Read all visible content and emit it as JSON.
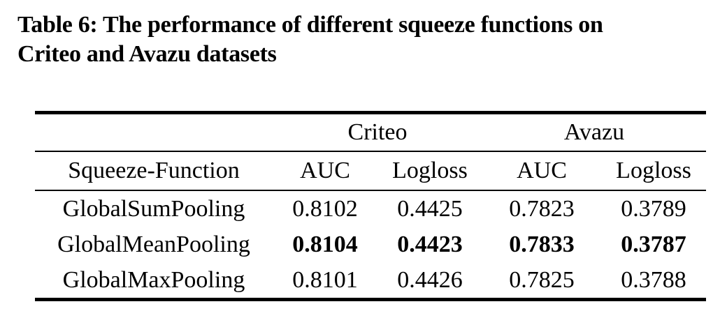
{
  "caption": {
    "lines": [
      "Table 6: The performance of different squeeze functions on",
      "Criteo and Avazu datasets"
    ]
  },
  "table": {
    "groups": [
      {
        "label": "Criteo"
      },
      {
        "label": "Avazu"
      }
    ],
    "header": {
      "row_label": "Squeeze-Function",
      "columns": [
        "AUC",
        "Logloss",
        "AUC",
        "Logloss"
      ]
    },
    "rows": [
      {
        "name": "GlobalSumPooling",
        "bold": false,
        "values": [
          "0.8102",
          "0.4425",
          "0.7823",
          "0.3789"
        ]
      },
      {
        "name": "GlobalMeanPooling",
        "bold": true,
        "values": [
          "0.8104",
          "0.4423",
          "0.7833",
          "0.3787"
        ]
      },
      {
        "name": "GlobalMaxPooling",
        "bold": false,
        "values": [
          "0.8101",
          "0.4426",
          "0.7825",
          "0.3788"
        ]
      }
    ]
  },
  "colors": {
    "text": "#000000",
    "background": "#ffffff",
    "rule": "#000000"
  }
}
